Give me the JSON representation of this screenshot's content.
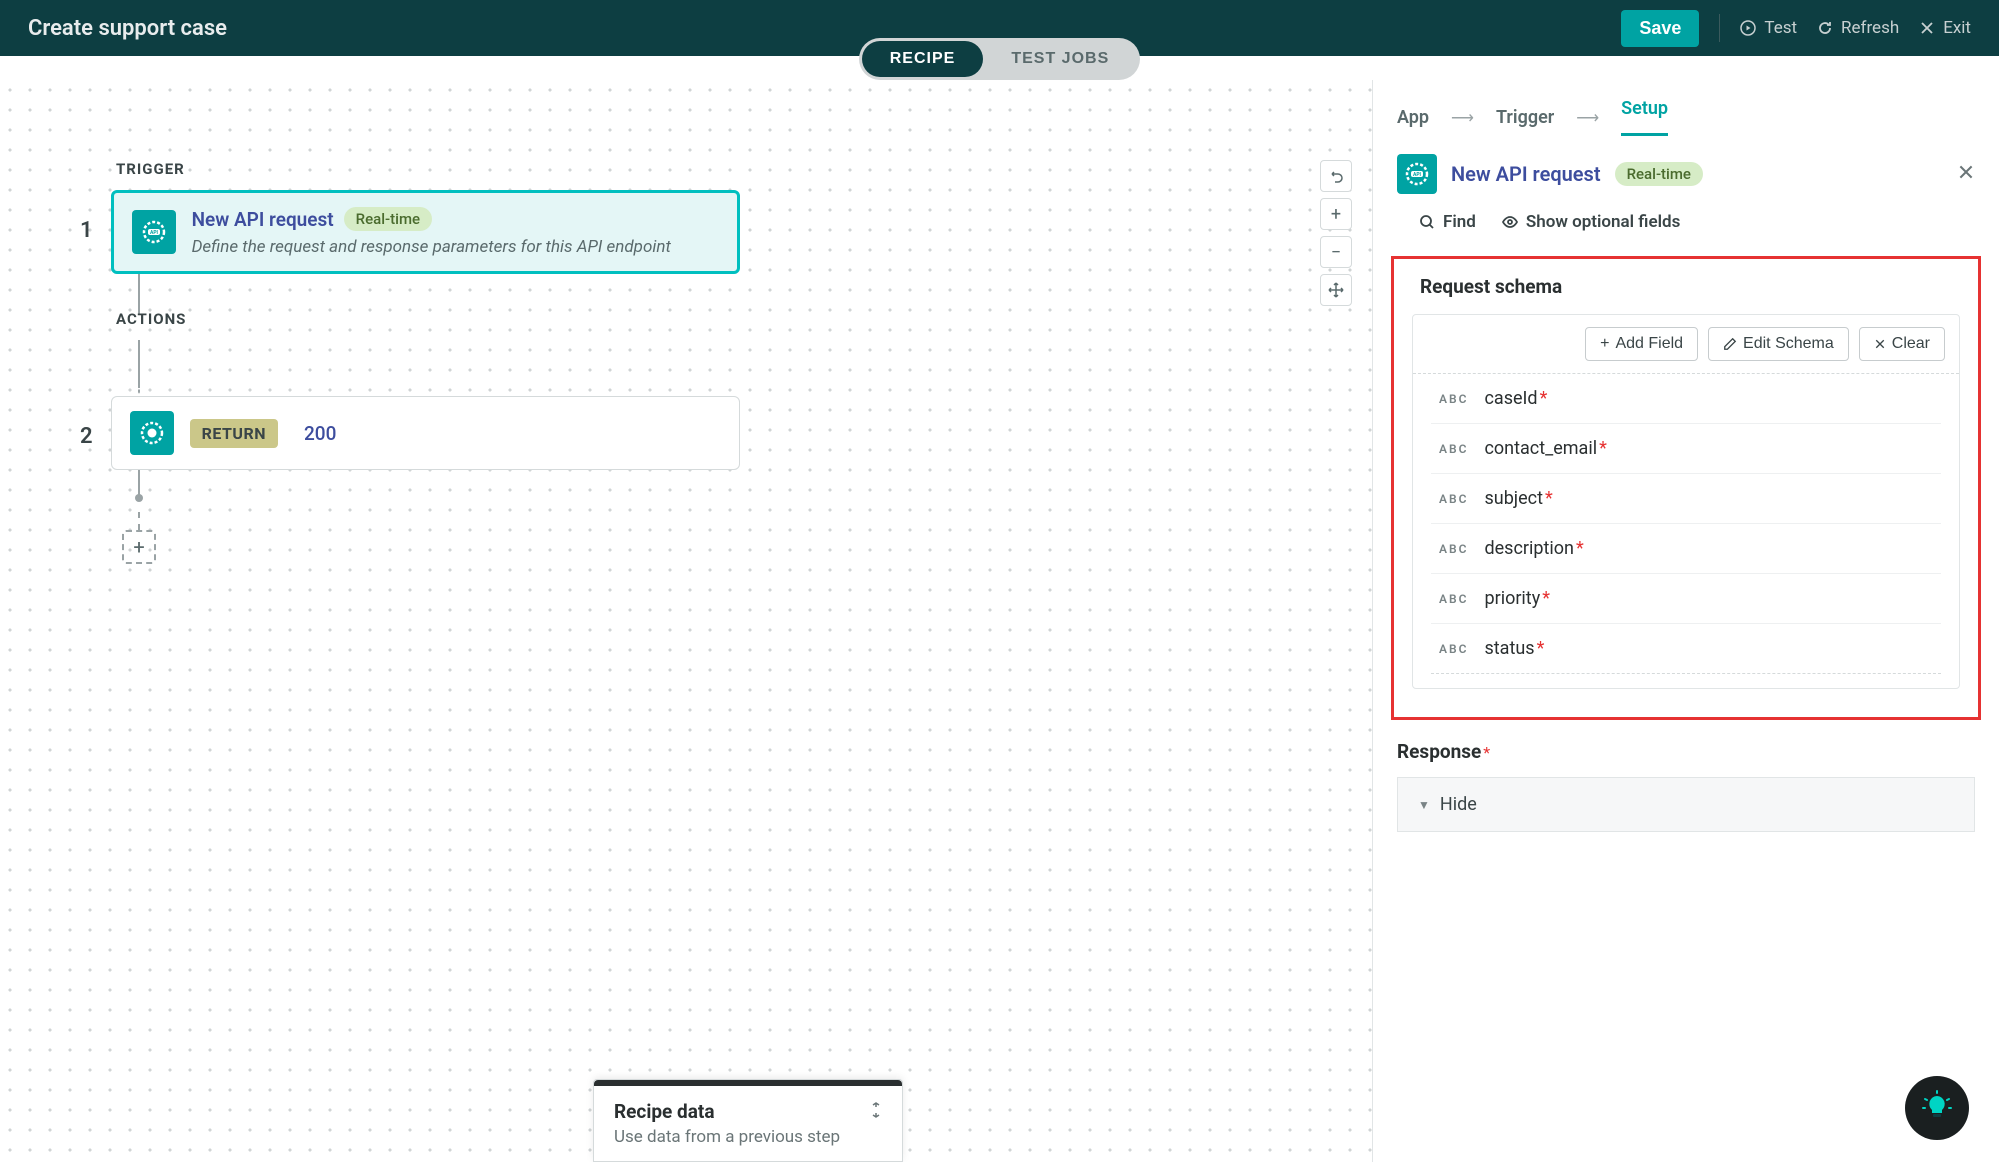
{
  "header": {
    "title": "Create support case",
    "save": "Save",
    "test": "Test",
    "refresh": "Refresh",
    "exit": "Exit"
  },
  "tabs": {
    "recipe": "RECIPE",
    "test_jobs": "TEST JOBS"
  },
  "canvas": {
    "trigger_label": "TRIGGER",
    "actions_label": "ACTIONS",
    "step1": {
      "num": "1",
      "title": "New API request",
      "badge": "Real-time",
      "desc": "Define the request and response parameters for this API endpoint"
    },
    "step2": {
      "num": "2",
      "return_label": "RETURN",
      "code": "200"
    }
  },
  "recipe_data": {
    "title": "Recipe data",
    "sub": "Use data from a previous step"
  },
  "panel": {
    "crumbs": {
      "app": "App",
      "trigger": "Trigger",
      "setup": "Setup"
    },
    "title": "New API request",
    "badge": "Real-time",
    "find": "Find",
    "show_optional": "Show optional fields",
    "schema": {
      "title": "Request schema",
      "add_field": "Add Field",
      "edit_schema": "Edit Schema",
      "clear": "Clear",
      "fields": [
        {
          "type": "ABC",
          "name": "caseId"
        },
        {
          "type": "ABC",
          "name": "contact_email"
        },
        {
          "type": "ABC",
          "name": "subject"
        },
        {
          "type": "ABC",
          "name": "description"
        },
        {
          "type": "ABC",
          "name": "priority"
        },
        {
          "type": "ABC",
          "name": "status"
        }
      ]
    },
    "response_label": "Response",
    "hide_label": "Hide"
  }
}
